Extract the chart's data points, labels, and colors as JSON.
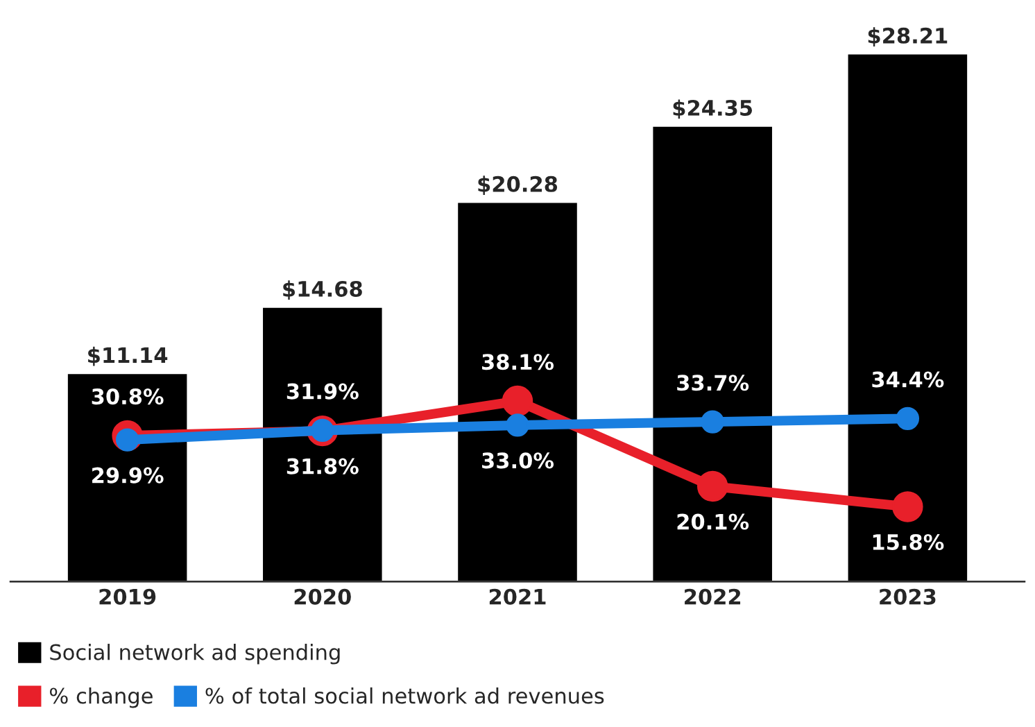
{
  "chart_data": {
    "type": "bar",
    "categories": [
      "2019",
      "2020",
      "2021",
      "2022",
      "2023"
    ],
    "series": [
      {
        "name": "Social network ad spending",
        "color": "#000000",
        "values": [
          11.14,
          14.68,
          20.28,
          24.35,
          28.21
        ],
        "value_labels": [
          "$11.14",
          "$14.68",
          "$20.28",
          "$24.35",
          "$28.21"
        ]
      },
      {
        "name": "% change",
        "type": "line",
        "axis": "y2",
        "color": "#e8202a",
        "values": [
          30.8,
          31.8,
          38.1,
          20.1,
          15.8
        ],
        "value_labels": [
          "30.8%",
          "31.8%",
          "38.1%",
          "20.1%",
          "15.8%"
        ]
      },
      {
        "name": "% of total social network ad revenues",
        "type": "line",
        "axis": "y2",
        "color": "#1a7fe0",
        "values": [
          29.9,
          31.9,
          33.0,
          33.7,
          34.4
        ],
        "value_labels": [
          "29.9%",
          "31.9%",
          "33.0%",
          "33.7%",
          "34.4%"
        ]
      }
    ],
    "tick_labels": "x",
    "marker": "circle",
    "line_style": "solid",
    "grid": false,
    "legend": "bottom"
  }
}
